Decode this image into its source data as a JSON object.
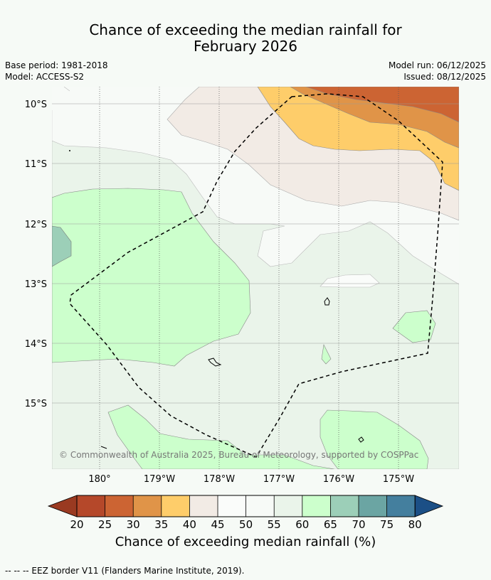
{
  "title": {
    "line1": "Chance of exceeding the median rainfall for",
    "line2": "February 2026"
  },
  "meta": {
    "base_period": "Base period: 1981-2018",
    "model": "Model: ACCESS-S2",
    "model_run": "Model run: 06/12/2025",
    "issued": "Issued: 08/12/2025"
  },
  "map": {
    "lat_labels": [
      "10°S",
      "11°S",
      "12°S",
      "13°S",
      "14°S",
      "15°S"
    ],
    "lon_labels": [
      "180°",
      "179°W",
      "178°W",
      "177°W",
      "176°W",
      "175°W"
    ],
    "copyright": "© Commonwealth of Australia 2025, Bureau of Meteorology, supported by COSPPac"
  },
  "colorbar": {
    "ticks": [
      "20",
      "25",
      "30",
      "35",
      "40",
      "45",
      "50",
      "55",
      "60",
      "65",
      "70",
      "75",
      "80"
    ],
    "colors": {
      "lt20": "#9a3a21",
      "c20_25": "#b5482a",
      "c25_30": "#cc6433",
      "c30_35": "#e09448",
      "c35_40": "#fecd6a",
      "c40_45": "#f2ebe5",
      "c45_50": "#fafcfa",
      "c50_55": "#f7faf7",
      "c55_60": "#eaf4ea",
      "c60_65": "#ccffcc",
      "c65_70": "#9ccfb8",
      "c70_75": "#6ba5a3",
      "c75_80": "#447f9e",
      "gt80": "#1b4f86"
    },
    "label": "Chance of exceeding median rainfall (%)"
  },
  "footnote": "--  --  -- EEZ border V11 (Flanders Marine Institute, 2019)."
}
